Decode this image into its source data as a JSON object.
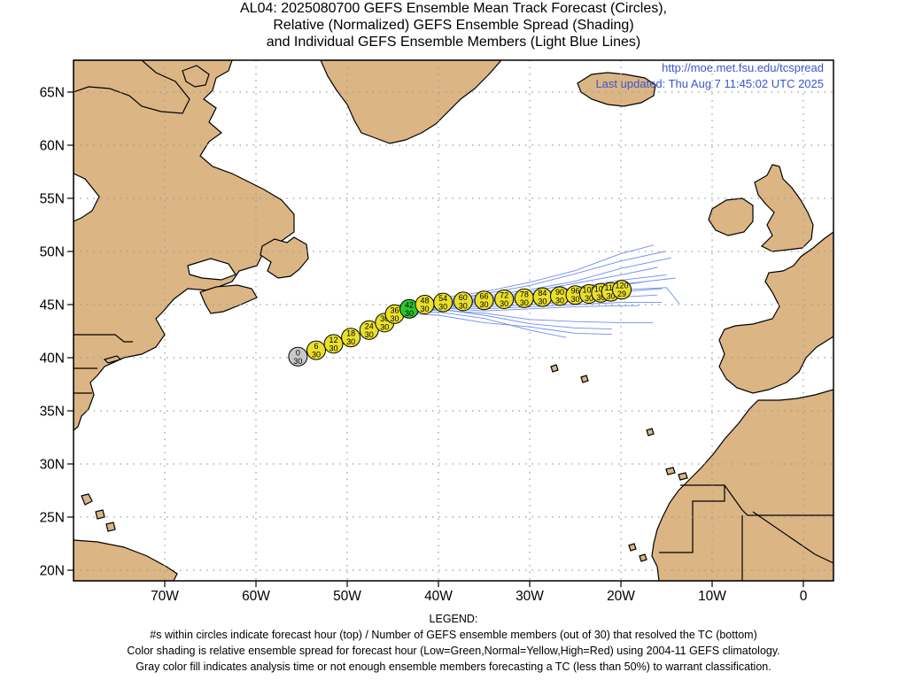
{
  "title": {
    "line1": "AL04: 2025080700 GEFS Ensemble Mean Track Forecast (Circles),",
    "line2": "Relative (Normalized) GEFS Ensemble Spread (Shading)",
    "line3": "and Individual GEFS Ensemble Members (Light Blue Lines)"
  },
  "credit": {
    "url": "http://moe.met.fsu.edu/tcspread",
    "updated": "Last updated: Thu Aug 7 11:45:02 UTC 2025"
  },
  "axes": {
    "lat_labels": [
      "65N",
      "60N",
      "55N",
      "50N",
      "45N",
      "40N",
      "35N",
      "30N",
      "25N",
      "20N"
    ],
    "lat_values": [
      65,
      60,
      55,
      50,
      45,
      40,
      35,
      30,
      25,
      20
    ],
    "lon_labels": [
      "70W",
      "60W",
      "50W",
      "40W",
      "30W",
      "20W",
      "10W",
      "0"
    ],
    "lon_values": [
      -70,
      -60,
      -50,
      -40,
      -30,
      -20,
      -10,
      0
    ],
    "lon_range": [
      -80,
      3.3
    ],
    "lat_range": [
      19,
      68
    ],
    "grid": true
  },
  "colors": {
    "land": "#dbb584",
    "ocean": "#ffffff",
    "members": "#6f8cf0",
    "normal": "#e9e02b",
    "low": "#2bc82b",
    "analysis": "#c8c8c8"
  },
  "forecast_points": [
    {
      "hour": "0",
      "members": "30",
      "lon": -55.4,
      "lat": 40.1,
      "fill": "gray"
    },
    {
      "hour": "6",
      "members": "30",
      "lon": -53.4,
      "lat": 40.7,
      "fill": "yellow"
    },
    {
      "hour": "12",
      "members": "30",
      "lon": -51.5,
      "lat": 41.3,
      "fill": "yellow"
    },
    {
      "hour": "18",
      "members": "30",
      "lon": -49.6,
      "lat": 41.9,
      "fill": "yellow"
    },
    {
      "hour": "24",
      "members": "30",
      "lon": -47.6,
      "lat": 42.6,
      "fill": "yellow"
    },
    {
      "hour": "30",
      "members": "30",
      "lon": -45.9,
      "lat": 43.3,
      "fill": "yellow"
    },
    {
      "hour": "36",
      "members": "30",
      "lon": -44.8,
      "lat": 44.1,
      "fill": "yellow"
    },
    {
      "hour": "42",
      "members": "30",
      "lon": -43.2,
      "lat": 44.6,
      "fill": "green"
    },
    {
      "hour": "48",
      "members": "30",
      "lon": -41.5,
      "lat": 45.0,
      "fill": "yellow"
    },
    {
      "hour": "54",
      "members": "30",
      "lon": -39.5,
      "lat": 45.2,
      "fill": "yellow"
    },
    {
      "hour": "60",
      "members": "30",
      "lon": -37.3,
      "lat": 45.3,
      "fill": "yellow"
    },
    {
      "hour": "66",
      "members": "30",
      "lon": -35.0,
      "lat": 45.4,
      "fill": "yellow"
    },
    {
      "hour": "72",
      "members": "30",
      "lon": -32.8,
      "lat": 45.5,
      "fill": "yellow"
    },
    {
      "hour": "78",
      "members": "30",
      "lon": -30.6,
      "lat": 45.6,
      "fill": "yellow"
    },
    {
      "hour": "84",
      "members": "30",
      "lon": -28.6,
      "lat": 45.7,
      "fill": "yellow"
    },
    {
      "hour": "90",
      "members": "30",
      "lon": -26.7,
      "lat": 45.8,
      "fill": "yellow"
    },
    {
      "hour": "96",
      "members": "30",
      "lon": -25.0,
      "lat": 45.9,
      "fill": "yellow"
    },
    {
      "hour": "102",
      "members": "30",
      "lon": -23.5,
      "lat": 46.0,
      "fill": "yellow"
    },
    {
      "hour": "108",
      "members": "30",
      "lon": -22.2,
      "lat": 46.1,
      "fill": "yellow"
    },
    {
      "hour": "114",
      "members": "30",
      "lon": -21.1,
      "lat": 46.2,
      "fill": "yellow"
    },
    {
      "hour": "120",
      "members": "29",
      "lon": -19.9,
      "lat": 46.4,
      "fill": "yellow"
    }
  ],
  "member_tracks": [
    [
      [
        -44.5,
        44.2
      ],
      [
        -40,
        45.6
      ],
      [
        -35,
        46.2
      ],
      [
        -30,
        47.1
      ],
      [
        -25,
        48.2
      ],
      [
        -20,
        49.8
      ],
      [
        -16.4,
        50.6
      ]
    ],
    [
      [
        -44.5,
        44.2
      ],
      [
        -40,
        45.4
      ],
      [
        -35,
        46.0
      ],
      [
        -30,
        46.8
      ],
      [
        -25,
        47.9
      ],
      [
        -20,
        49.1
      ],
      [
        -15.2,
        50.0
      ]
    ],
    [
      [
        -44.5,
        44.2
      ],
      [
        -40,
        45.5
      ],
      [
        -35,
        45.8
      ],
      [
        -30,
        46.4
      ],
      [
        -25,
        47.2
      ],
      [
        -20,
        48.4
      ],
      [
        -14.5,
        49.4
      ]
    ],
    [
      [
        -44.5,
        44.2
      ],
      [
        -40,
        45.3
      ],
      [
        -35,
        45.6
      ],
      [
        -30,
        46.2
      ],
      [
        -25,
        47.0
      ],
      [
        -20,
        47.8
      ],
      [
        -16.0,
        48.5
      ]
    ],
    [
      [
        -44.5,
        44.2
      ],
      [
        -40,
        45.2
      ],
      [
        -35,
        45.5
      ],
      [
        -30,
        46.0
      ],
      [
        -25,
        46.6
      ],
      [
        -20,
        47.3
      ],
      [
        -15.0,
        47.8
      ]
    ],
    [
      [
        -44.5,
        44.2
      ],
      [
        -40,
        45.1
      ],
      [
        -35,
        45.3
      ],
      [
        -30,
        45.7
      ],
      [
        -25,
        46.1
      ],
      [
        -20,
        46.8
      ],
      [
        -17.0,
        47.2
      ]
    ],
    [
      [
        -44.5,
        44.2
      ],
      [
        -40,
        45.0
      ],
      [
        -35,
        45.0
      ],
      [
        -30,
        45.3
      ],
      [
        -25,
        45.7
      ],
      [
        -20,
        46.2
      ],
      [
        -15.5,
        46.5
      ]
    ],
    [
      [
        -44.5,
        44.2
      ],
      [
        -40,
        44.9
      ],
      [
        -35,
        44.8
      ],
      [
        -30,
        45.0
      ],
      [
        -25,
        45.3
      ],
      [
        -20,
        45.7
      ],
      [
        -16.0,
        45.9
      ]
    ],
    [
      [
        -44.5,
        44.2
      ],
      [
        -40,
        44.8
      ],
      [
        -35,
        44.6
      ],
      [
        -30,
        44.8
      ],
      [
        -25,
        45.0
      ],
      [
        -20,
        45.2
      ],
      [
        -15.5,
        45.2
      ]
    ],
    [
      [
        -44.5,
        44.2
      ],
      [
        -40,
        44.7
      ],
      [
        -35,
        44.4
      ],
      [
        -30,
        44.6
      ],
      [
        -25,
        44.8
      ],
      [
        -20,
        44.9
      ],
      [
        -18.0,
        44.9
      ]
    ],
    [
      [
        -44.5,
        44.2
      ],
      [
        -40,
        44.5
      ],
      [
        -35,
        44.2
      ],
      [
        -30,
        43.6
      ],
      [
        -25,
        43.4
      ],
      [
        -20,
        43.3
      ],
      [
        -16.5,
        43.3
      ]
    ],
    [
      [
        -44.5,
        44.2
      ],
      [
        -40,
        44.3
      ],
      [
        -35,
        43.7
      ],
      [
        -30,
        42.6
      ],
      [
        -26,
        41.9
      ]
    ],
    [
      [
        -44.5,
        44.2
      ],
      [
        -40,
        44.0
      ],
      [
        -35,
        43.3
      ],
      [
        -30,
        42.9
      ],
      [
        -25,
        42.3
      ],
      [
        -21.0,
        42.2
      ]
    ],
    [
      [
        -44.5,
        44.2
      ],
      [
        -40,
        45.0
      ],
      [
        -35,
        45.2
      ],
      [
        -30,
        45.5
      ],
      [
        -25,
        46.0
      ],
      [
        -20,
        46.4
      ],
      [
        -15.0,
        46.6
      ],
      [
        -13.6,
        45.1
      ]
    ],
    [
      [
        -44.5,
        44.2
      ],
      [
        -40,
        45.1
      ],
      [
        -35,
        45.4
      ],
      [
        -30,
        45.8
      ],
      [
        -25,
        46.3
      ],
      [
        -20,
        46.9
      ],
      [
        -14.0,
        47.5
      ]
    ],
    [
      [
        -44.5,
        44.2
      ],
      [
        -40,
        44.6
      ],
      [
        -35,
        44.0
      ],
      [
        -30,
        43.2
      ],
      [
        -25,
        42.8
      ],
      [
        -21.0,
        42.7
      ]
    ]
  ],
  "legend": {
    "title": "LEGEND:",
    "line1": "#s within circles indicate forecast hour (top) / Number of GEFS ensemble members (out of 30) that resolved the TC (bottom)",
    "line2": "Color shading is relative ensemble spread for forecast hour (Low=Green,Normal=Yellow,High=Red) using 2004-11 GEFS climatology.",
    "line3": "Gray color fill indicates analysis time or not enough ensemble members forecasting a TC (less than 50%) to warrant classification."
  }
}
